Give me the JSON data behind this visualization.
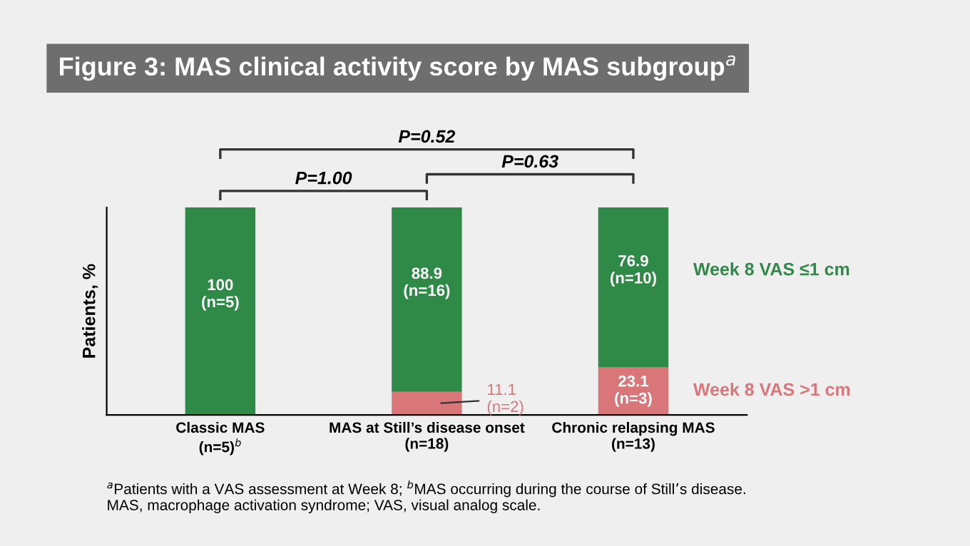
{
  "chart_data": {
    "type": "bar",
    "stacked": true,
    "title": "Figure 3: MAS clinical activity score by MAS subgroup$^{a}$",
    "ylabel": "Patients, %",
    "categories": [
      "Classic MAS\n(n=5)$^{b}$",
      "MAS at Still’s disease onset\n(n=18)",
      "Chronic relapsing MAS\n(n=13)"
    ],
    "series": [
      {
        "name": "Week 8 VAS >1 cm",
        "color": "#d9767a",
        "values": [
          null,
          11.1,
          23.1
        ],
        "value_labels": [
          null,
          "11.1\n(n=2)",
          "23.1\n(n=3)"
        ]
      },
      {
        "name": "Week 8 VAS ≤1 cm",
        "color": "#2f8a48",
        "values": [
          100,
          88.9,
          76.9
        ],
        "value_labels": [
          "100\n(n=5)",
          "88.9\n(n=16)",
          "76.9\n(n=10)"
        ]
      }
    ],
    "ylim": [
      0,
      100
    ],
    "tick_labels": "x",
    "legend": false,
    "annotations": [
      "P=0.52",
      "P=0.63",
      "P=1.00",
      "$^{a}$Patients with a VAS assessment at Week 8; $^{b}$MAS occurring during the course of Still’s disease.\nMAS, macrophage activation syndrome; VAS, visual analog scale."
    ]
  }
}
